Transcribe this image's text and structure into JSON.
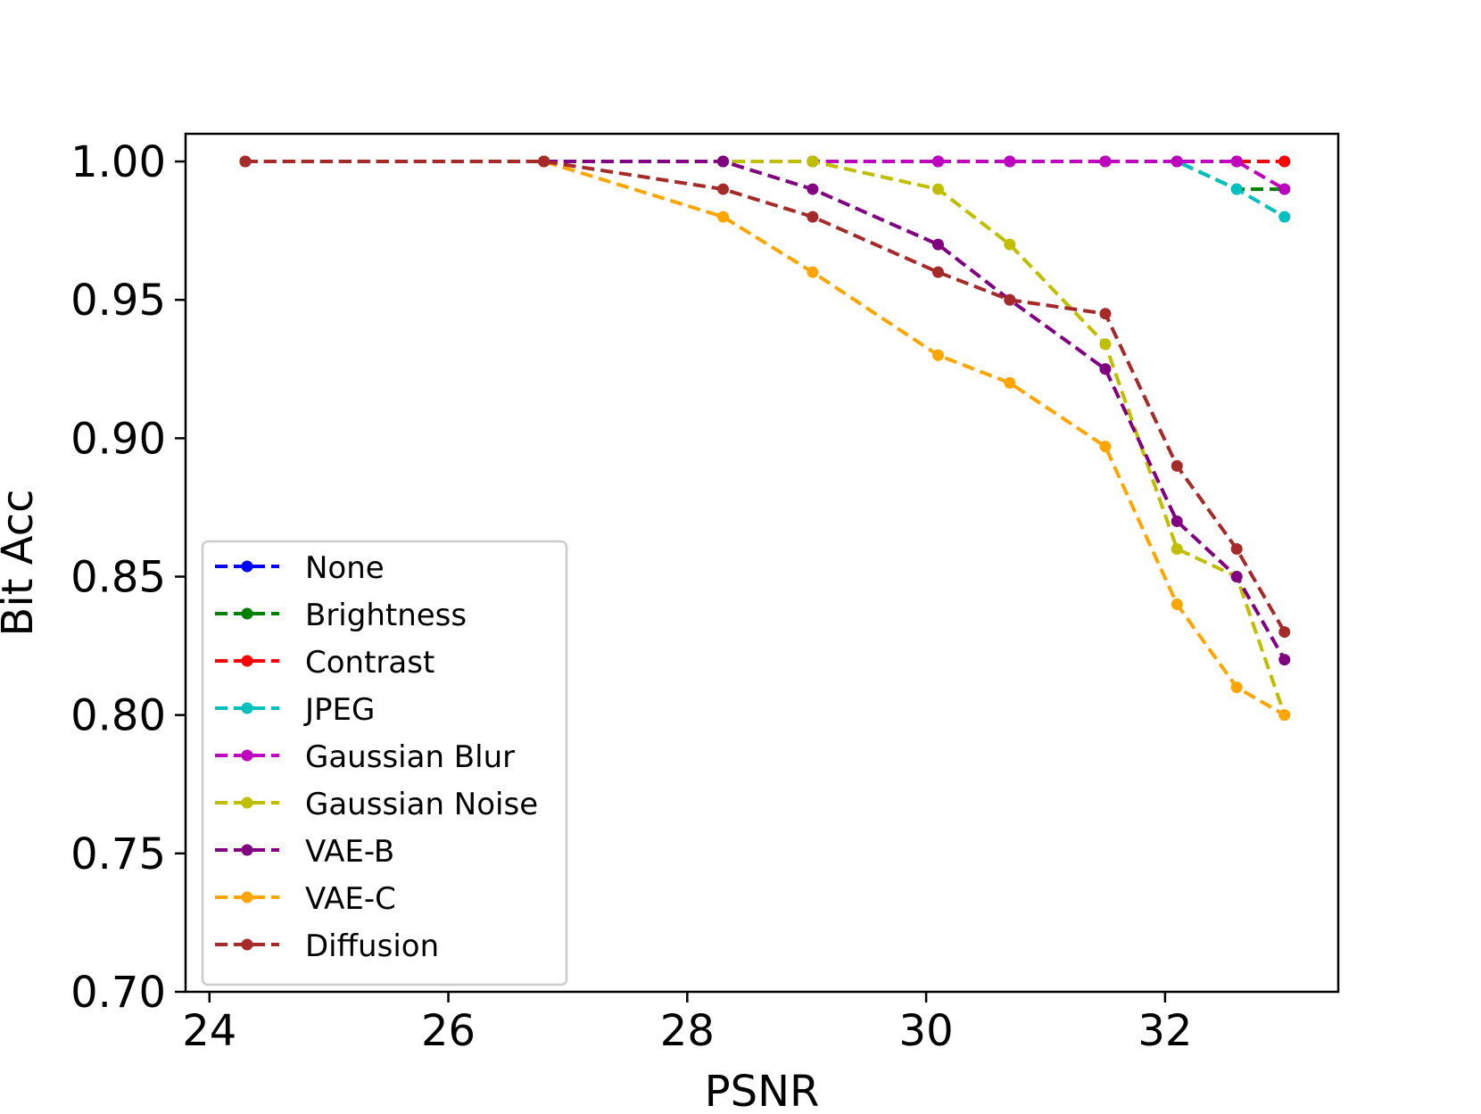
{
  "chart_data": {
    "type": "line",
    "title": "",
    "xlabel": "PSNR",
    "ylabel": "Bit Acc",
    "xlim": [
      23.8,
      33.45
    ],
    "ylim": [
      0.7,
      1.01
    ],
    "xticks": [
      24,
      26,
      28,
      30,
      32
    ],
    "xtick_labels": [
      "24",
      "26",
      "28",
      "30",
      "32"
    ],
    "yticks": [
      0.7,
      0.75,
      0.8,
      0.85,
      0.9,
      0.95,
      1.0
    ],
    "ytick_labels": [
      "0.70",
      "0.75",
      "0.80",
      "0.85",
      "0.90",
      "0.95",
      "1.00"
    ],
    "grid": false,
    "legend_position": "lower-left",
    "series": [
      {
        "name": "None",
        "color": "#0000ff",
        "x": [
          24.3,
          26.8,
          28.3,
          29.05,
          30.1,
          30.7,
          31.5,
          32.1,
          32.6,
          33.0
        ],
        "y": [
          1.0,
          1.0,
          1.0,
          1.0,
          1.0,
          1.0,
          1.0,
          1.0,
          1.0,
          1.0
        ]
      },
      {
        "name": "Brightness",
        "color": "#008000",
        "x": [
          24.3,
          26.8,
          28.3,
          29.05,
          30.1,
          30.7,
          31.5,
          32.1,
          32.6,
          33.0
        ],
        "y": [
          1.0,
          1.0,
          1.0,
          1.0,
          1.0,
          1.0,
          1.0,
          1.0,
          0.99,
          0.99
        ]
      },
      {
        "name": "Contrast",
        "color": "#ff0000",
        "x": [
          24.3,
          26.8,
          28.3,
          29.05,
          30.1,
          30.7,
          31.5,
          32.1,
          32.6,
          33.0
        ],
        "y": [
          1.0,
          1.0,
          1.0,
          1.0,
          1.0,
          1.0,
          1.0,
          1.0,
          1.0,
          1.0
        ]
      },
      {
        "name": "JPEG",
        "color": "#00bfbf",
        "x": [
          24.3,
          26.8,
          28.3,
          29.05,
          30.1,
          30.7,
          31.5,
          32.1,
          32.6,
          33.0
        ],
        "y": [
          1.0,
          1.0,
          1.0,
          1.0,
          1.0,
          1.0,
          1.0,
          1.0,
          0.99,
          0.98
        ]
      },
      {
        "name": "Gaussian Blur",
        "color": "#bf00bf",
        "x": [
          24.3,
          26.8,
          28.3,
          29.05,
          30.1,
          30.7,
          31.5,
          32.1,
          32.6,
          33.0
        ],
        "y": [
          1.0,
          1.0,
          1.0,
          1.0,
          1.0,
          1.0,
          1.0,
          1.0,
          1.0,
          0.99
        ]
      },
      {
        "name": "Gaussian Noise",
        "color": "#bfbf00",
        "x": [
          24.3,
          26.8,
          28.3,
          29.05,
          30.1,
          30.7,
          31.5,
          32.1,
          32.6,
          33.0
        ],
        "y": [
          1.0,
          1.0,
          1.0,
          1.0,
          0.99,
          0.97,
          0.934,
          0.86,
          0.85,
          0.8
        ]
      },
      {
        "name": "VAE-B",
        "color": "#800080",
        "x": [
          24.3,
          26.8,
          28.3,
          29.05,
          30.1,
          30.7,
          31.5,
          32.1,
          32.6,
          33.0
        ],
        "y": [
          1.0,
          1.0,
          1.0,
          0.99,
          0.97,
          0.95,
          0.925,
          0.87,
          0.85,
          0.82
        ]
      },
      {
        "name": "VAE-C",
        "color": "#ffa500",
        "x": [
          24.3,
          26.8,
          28.3,
          29.05,
          30.1,
          30.7,
          31.5,
          32.1,
          32.6,
          33.0
        ],
        "y": [
          1.0,
          1.0,
          0.98,
          0.96,
          0.93,
          0.92,
          0.897,
          0.84,
          0.81,
          0.8
        ]
      },
      {
        "name": "Diffusion",
        "color": "#a52a2a",
        "x": [
          24.3,
          26.8,
          28.3,
          29.05,
          30.1,
          30.7,
          31.5,
          32.1,
          32.6,
          33.0
        ],
        "y": [
          1.0,
          1.0,
          0.99,
          0.98,
          0.96,
          0.95,
          0.945,
          0.89,
          0.86,
          0.83
        ]
      }
    ]
  }
}
